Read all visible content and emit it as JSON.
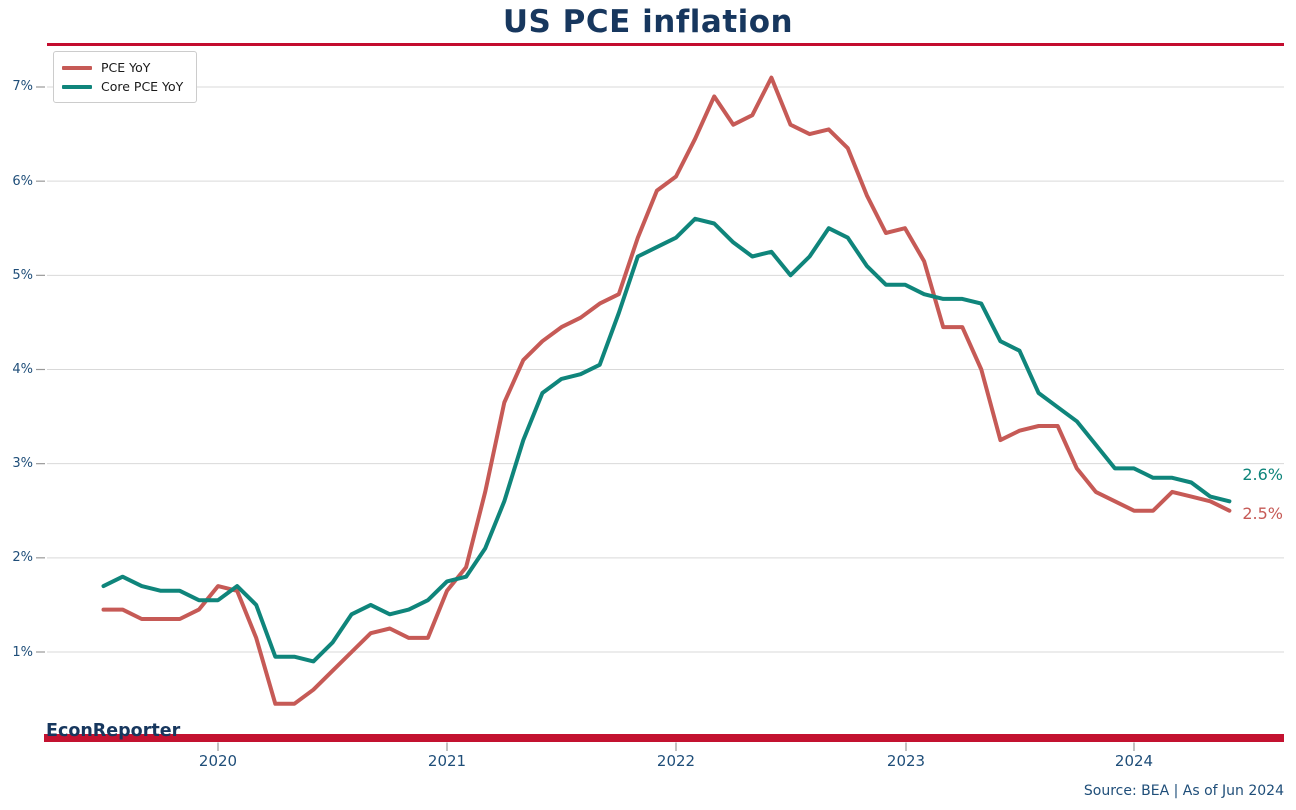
{
  "title": "US PCE inflation",
  "branding": {
    "watermark": "EconReporter",
    "source_note": "Source: BEA | As of Jun 2024"
  },
  "colors": {
    "title_navy": "#17375e",
    "axis_label_navy": "#1f4e79",
    "title_rule_red": "#c30c2e",
    "bottom_bar_crimson": "#c31230",
    "pce_red": "#c65a56",
    "core_pce_teal": "#0f857b",
    "gridline_gray": "#d9d9d9",
    "tick_gray": "#999999",
    "legend_text": "#1a1a1a",
    "background": "#ffffff"
  },
  "legend": {
    "position": "upper-left",
    "items": [
      {
        "label": "PCE YoY",
        "color": "#c65a56"
      },
      {
        "label": "Core PCE YoY",
        "color": "#0f857b"
      }
    ]
  },
  "end_labels": [
    {
      "text": "2.6%",
      "series": "Core PCE YoY",
      "color": "#0f857b"
    },
    {
      "text": "2.5%",
      "series": "PCE YoY",
      "color": "#c65a56"
    }
  ],
  "chart_data": {
    "type": "line",
    "title": "US PCE inflation",
    "frequency": "monthly",
    "x_range": [
      "2019-07",
      "2024-06"
    ],
    "x_tick_labels": [
      "2020",
      "2021",
      "2022",
      "2023",
      "2024"
    ],
    "y_ticks": [
      1,
      2,
      3,
      4,
      5,
      6,
      7
    ],
    "y_tick_labels": [
      "1%",
      "2%",
      "3%",
      "4%",
      "5%",
      "6%",
      "7%"
    ],
    "ylim": [
      0.1,
      7.5
    ],
    "grid": "horizontal",
    "legend_position": "upper-left",
    "series": [
      {
        "name": "PCE YoY",
        "color": "#c65a56",
        "latest_label": "2.5%",
        "values": [
          1.45,
          1.45,
          1.35,
          1.35,
          1.35,
          1.45,
          1.7,
          1.65,
          1.15,
          0.45,
          0.45,
          0.6,
          0.8,
          1.0,
          1.2,
          1.25,
          1.15,
          1.15,
          1.65,
          1.9,
          2.7,
          3.65,
          4.1,
          4.3,
          4.45,
          4.55,
          4.7,
          4.8,
          5.4,
          5.9,
          6.05,
          6.45,
          6.9,
          6.6,
          6.7,
          7.1,
          6.6,
          6.5,
          6.55,
          6.35,
          5.85,
          5.45,
          5.5,
          5.15,
          4.45,
          4.45,
          4.0,
          3.25,
          3.35,
          3.4,
          3.4,
          2.95,
          2.7,
          2.6,
          2.5,
          2.5,
          2.7,
          2.65,
          2.6,
          2.5
        ]
      },
      {
        "name": "Core PCE YoY",
        "color": "#0f857b",
        "latest_label": "2.6%",
        "values": [
          1.7,
          1.8,
          1.7,
          1.65,
          1.65,
          1.55,
          1.55,
          1.7,
          1.5,
          0.95,
          0.95,
          0.9,
          1.1,
          1.4,
          1.5,
          1.4,
          1.45,
          1.55,
          1.75,
          1.8,
          2.1,
          2.6,
          3.25,
          3.75,
          3.9,
          3.95,
          4.05,
          4.6,
          5.2,
          5.3,
          5.4,
          5.6,
          5.55,
          5.35,
          5.2,
          5.25,
          5.0,
          5.2,
          5.5,
          5.4,
          5.1,
          4.9,
          4.9,
          4.8,
          4.75,
          4.75,
          4.7,
          4.3,
          4.2,
          3.75,
          3.6,
          3.45,
          3.2,
          2.95,
          2.95,
          2.85,
          2.85,
          2.8,
          2.65,
          2.6
        ]
      }
    ]
  }
}
